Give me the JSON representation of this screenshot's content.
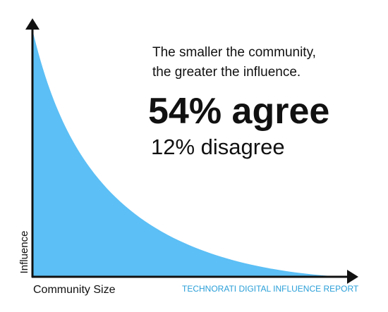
{
  "headline": {
    "line1": "The smaller the community,",
    "line2": "the greater the influence.",
    "agree": "54% agree",
    "disagree": "12% disagree"
  },
  "axes": {
    "y_label": "Influence",
    "x_label": "Community Size"
  },
  "source": "TECHNORATI DIGITAL INFLUENCE REPORT"
}
